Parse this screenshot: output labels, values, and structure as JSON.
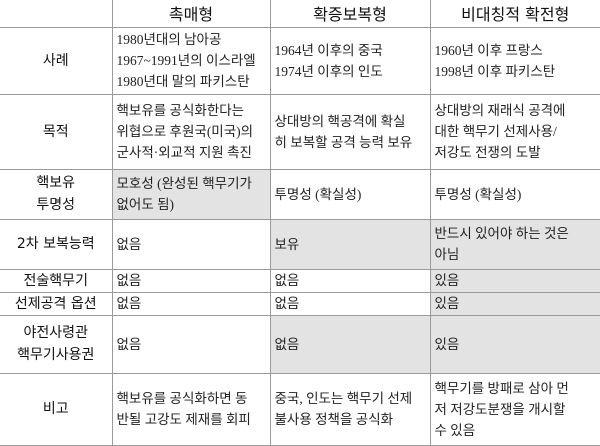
{
  "header": {
    "columns": [
      "촉매형",
      "확증보복형",
      "비대칭적 확전형"
    ]
  },
  "rows": [
    {
      "label": [
        "사례"
      ],
      "cells": [
        [
          "1980년대의 남아공",
          "1967~1991년의 이스라엘",
          "1980년대 말의 파키스탄"
        ],
        [
          "1964년 이후의 중국",
          "1974년 이후의 인도"
        ],
        [
          "1960년 이후 프랑스",
          "1998년 이후 파키스탄"
        ]
      ]
    },
    {
      "label": [
        "목적"
      ],
      "cells": [
        [
          "핵보유를 공식화한다는",
          "위협으로 후원국(미국)의",
          "군사적·외교적 지원 촉진"
        ],
        [
          "상대방의 핵공격에 확실",
          "히 보복할 공격 능력 보유"
        ],
        [
          "상대방의 재래식 공격에",
          "대한 핵무기 선제사용/",
          "저강도 전쟁의 도발"
        ]
      ]
    },
    {
      "label": [
        "핵보유",
        "투명성"
      ],
      "cells": [
        [
          "모호성 (완성된 핵무기가",
          "없어도 됨)"
        ],
        [
          "투명성 (확실성)"
        ],
        [
          "투명성 (확실성)"
        ]
      ]
    },
    {
      "label": [
        "2차 보복능력"
      ],
      "cells": [
        [
          "없음"
        ],
        [
          "보유"
        ],
        [
          "반드시 있어야 하는 것은",
          "아님"
        ]
      ]
    },
    {
      "label": [
        "전술핵무기"
      ],
      "cells": [
        [
          "없음"
        ],
        [
          "없음"
        ],
        [
          "있음"
        ]
      ]
    },
    {
      "label": [
        "선제공격 옵션"
      ],
      "cells": [
        [
          "없음"
        ],
        [
          "없음"
        ],
        [
          "있음"
        ]
      ]
    },
    {
      "label": [
        "야전사령관",
        "핵무기사용권"
      ],
      "cells": [
        [
          "없음"
        ],
        [
          "없음"
        ],
        [
          "있음"
        ]
      ]
    },
    {
      "label": [
        "비고"
      ],
      "cells": [
        [
          "핵보유를 공식화하면 동",
          "반될 고강도 제재를 회피"
        ],
        [
          "중국, 인도는 핵무기 선제",
          "불사용 정책을 공식화"
        ],
        [
          "핵무기를 방패로 삼아 먼",
          "저 저강도분쟁을 개시할",
          "수 있음"
        ]
      ]
    }
  ]
}
